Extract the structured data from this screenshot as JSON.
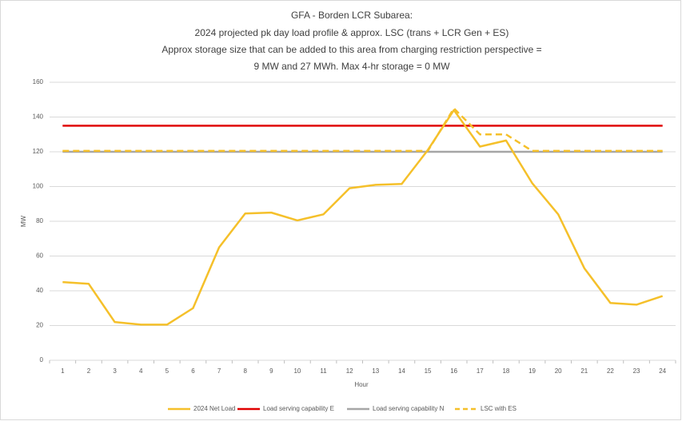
{
  "chart_data": {
    "type": "line",
    "title": [
      "GFA - Borden LCR Subarea:",
      "2024 projected pk day load profile & approx. LSC (trans + LCR Gen + ES)",
      "Approx storage size that can be added to this area from charging restriction perspective =",
      "9 MW and 27 MWh. Max 4-hr storage = 0 MW"
    ],
    "xlabel": "Hour",
    "ylabel": "MW",
    "categories": [
      "1",
      "2",
      "3",
      "4",
      "5",
      "6",
      "7",
      "8",
      "9",
      "10",
      "11",
      "12",
      "13",
      "14",
      "15",
      "16",
      "17",
      "18",
      "19",
      "20",
      "21",
      "22",
      "23",
      "24"
    ],
    "series": [
      {
        "name": "2024 Net Load",
        "color": "#f5c02a",
        "style": "solid",
        "values": [
          45,
          44,
          22,
          20.5,
          20.5,
          30,
          65,
          84.5,
          85,
          80.5,
          84,
          99,
          101,
          101.5,
          121,
          144,
          123,
          126.5,
          102,
          84,
          53,
          33,
          32,
          37
        ]
      },
      {
        "name": "Load serving capability E",
        "color": "#e00000",
        "style": "solid",
        "values": [
          135,
          135,
          135,
          135,
          135,
          135,
          135,
          135,
          135,
          135,
          135,
          135,
          135,
          135,
          135,
          135,
          135,
          135,
          135,
          135,
          135,
          135,
          135,
          135
        ]
      },
      {
        "name": "Load serving capability N",
        "color": "#a6a6a6",
        "style": "solid",
        "values": [
          120,
          120,
          120,
          120,
          120,
          120,
          120,
          120,
          120,
          120,
          120,
          120,
          120,
          120,
          120,
          120,
          120,
          120,
          120,
          120,
          120,
          120,
          120,
          120
        ]
      },
      {
        "name": "LSC with ES",
        "color": "#f5c02a",
        "style": "dashed",
        "values": [
          120.5,
          120.5,
          120.5,
          120.5,
          120.5,
          120.5,
          120.5,
          120.5,
          120.5,
          120.5,
          120.5,
          120.5,
          120.5,
          120.5,
          120.5,
          145,
          130,
          130,
          120.5,
          120.5,
          120.5,
          120.5,
          120.5,
          120.5
        ]
      }
    ],
    "ylim": [
      0,
      160
    ],
    "yticks": [
      0,
      20,
      40,
      60,
      80,
      100,
      120,
      140,
      160
    ],
    "grid": true
  }
}
